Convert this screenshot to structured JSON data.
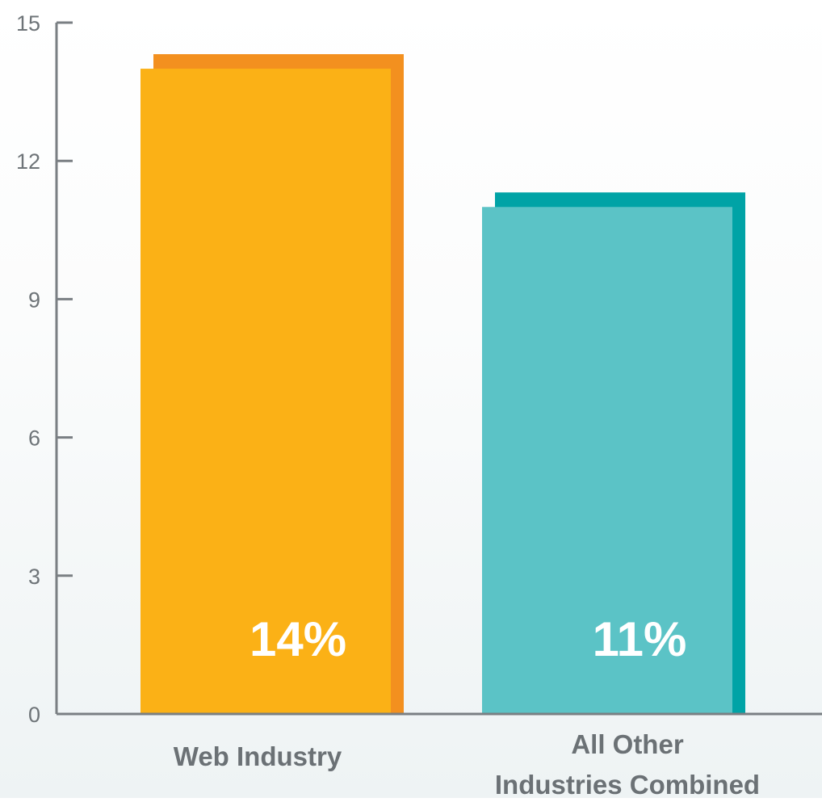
{
  "chart_data": {
    "type": "bar",
    "title": "",
    "xlabel": "",
    "ylabel": "",
    "categories": [
      [
        "Web Industry"
      ],
      [
        "All Other",
        "Industries Combined"
      ]
    ],
    "values": [
      14,
      11
    ],
    "data_labels": [
      "14%",
      "11%"
    ],
    "ylim": [
      0,
      15
    ],
    "yticks": [
      0,
      3,
      6,
      9,
      12,
      15
    ],
    "grid": false,
    "legend": "none",
    "colors": {
      "bars": [
        {
          "face": "#fbb116",
          "shadow": "#f3901f"
        },
        {
          "face": "#5bc3c6",
          "shadow": "#00a3a6"
        }
      ],
      "axis": "#7a7f83"
    }
  }
}
